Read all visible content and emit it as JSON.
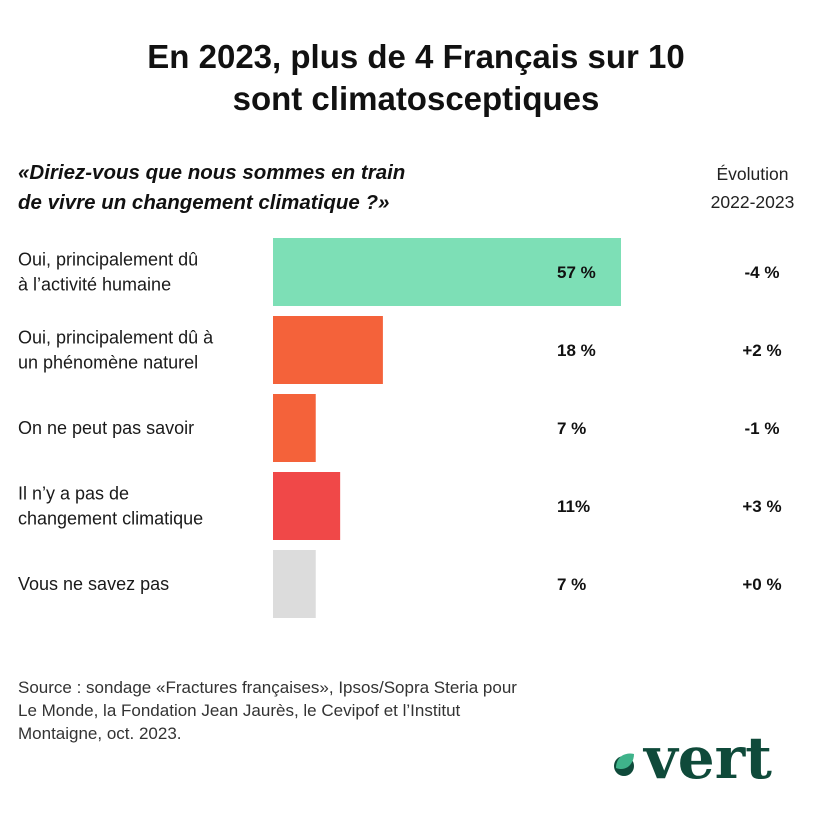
{
  "title": {
    "line1": "En 2023, plus de 4 Français sur 10",
    "line2": "sont climatosceptiques"
  },
  "question": {
    "line1": "«Diriez-vous que nous sommes en train",
    "line2": "de vivre un changement climatique ?»"
  },
  "evolution_header": {
    "line1": "Évolution",
    "line2": "2022-2023"
  },
  "chart_data": {
    "type": "bar",
    "orientation": "horizontal",
    "categories": [
      [
        "Oui, principalement dû",
        "à l’activité humaine"
      ],
      [
        "Oui, principalement dû à",
        "un phénomène naturel"
      ],
      [
        "On ne peut pas savoir"
      ],
      [
        "Il n’y a pas de",
        "changement climatique"
      ],
      [
        "Vous ne savez pas"
      ]
    ],
    "values": [
      57,
      18,
      7,
      11,
      7
    ],
    "value_labels": [
      "57 %",
      "18 %",
      "7 %",
      "11%",
      "7 %"
    ],
    "evolution_labels": [
      "-4 %",
      "+2 %",
      "-1 %",
      "+3 %",
      "+0 %"
    ],
    "colors": [
      "#7ddfb6",
      "#f4623a",
      "#f4623a",
      "#f04848",
      "#dcdcdc"
    ],
    "xlim": [
      0,
      57
    ],
    "grid": false
  },
  "source": {
    "line1": "Source : sondage «Fractures françaises», Ipsos/Sopra Steria pour",
    "line2": "Le Monde, la Fondation Jean Jaurès, le Cevipof et l’Institut",
    "line3": "Montaigne, oct. 2023."
  },
  "logo": {
    "text": "vert",
    "brand_color": "#0f4a3a",
    "leaf_color": "#3fb38a"
  }
}
